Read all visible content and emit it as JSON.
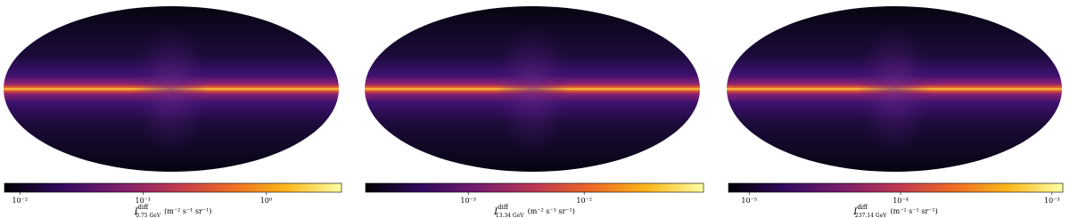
{
  "chart_data": [
    {
      "type": "sky-map",
      "log_scale": true,
      "colors": [
        "#000004",
        "#320a5e",
        "#781c6d",
        "#bc3754",
        "#ed6925",
        "#fbb61a",
        "#fcffa4"
      ],
      "xlim": [
        0.0075,
        4.1
      ],
      "xticks": [
        {
          "value": 0.01,
          "label": "10⁻²"
        },
        {
          "value": 0.1,
          "label": "10⁻¹"
        },
        {
          "value": 1,
          "label": "10⁰"
        }
      ],
      "label": {
        "symbol": "I",
        "superscript": "diff",
        "subscript": "0.75 GeV",
        "unit": "(m⁻² s⁻¹ sr⁻¹)"
      }
    },
    {
      "type": "sky-map",
      "log_scale": true,
      "colors": [
        "#000004",
        "#320a5e",
        "#781c6d",
        "#bc3754",
        "#ed6925",
        "#fbb61a",
        "#fcffa4"
      ],
      "xlim": [
        0.00013,
        0.107
      ],
      "xticks": [
        {
          "value": 0.001,
          "label": "10⁻³"
        },
        {
          "value": 0.01,
          "label": "10⁻²"
        }
      ],
      "label": {
        "symbol": "I",
        "superscript": "diff",
        "subscript": "13.34 GeV",
        "unit": "(m⁻² s⁻¹ sr⁻¹)"
      }
    },
    {
      "type": "sky-map",
      "log_scale": true,
      "colors": [
        "#000004",
        "#320a5e",
        "#781c6d",
        "#bc3754",
        "#ed6925",
        "#fbb61a",
        "#fcffa4"
      ],
      "xlim": [
        7.3e-06,
        0.00118
      ],
      "xticks": [
        {
          "value": 1e-05,
          "label": "10⁻⁵"
        },
        {
          "value": 0.0001,
          "label": "10⁻⁴"
        },
        {
          "value": 0.001,
          "label": "10⁻³"
        }
      ],
      "label": {
        "symbol": "I",
        "superscript": "diff",
        "subscript": "237.14 GeV",
        "unit": "(m⁻² s⁻¹ sr⁻¹)"
      }
    }
  ]
}
